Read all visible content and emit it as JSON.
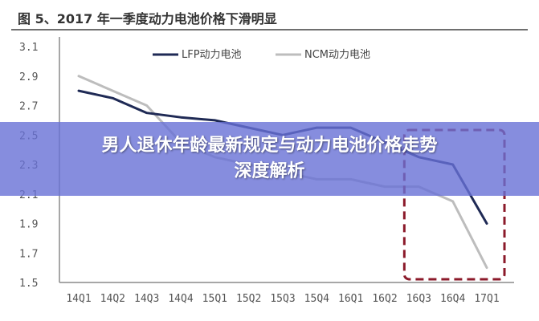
{
  "figure_title": "图 5、2017 年一季度动力电池价格下滑明显",
  "banner": {
    "line1": "男人退休年龄最新规定与动力电池价格走势",
    "line2": "深度解析"
  },
  "colors": {
    "lfp": "#1f2a55",
    "ncm": "#bdbdbd",
    "highlight_box": "#8b1a2a",
    "banner": "#6870d6"
  },
  "chart_data": {
    "type": "line",
    "title": "图 5、2017 年一季度动力电池价格下滑明显",
    "xlabel": "",
    "ylabel": "",
    "x": [
      "14Q1",
      "14Q2",
      "14Q3",
      "14Q4",
      "15Q1",
      "15Q2",
      "15Q3",
      "15Q4",
      "16Q1",
      "16Q2",
      "16Q3",
      "16Q4",
      "17Q1"
    ],
    "x_tick_labels": [
      "14Q1",
      "14Q2",
      "14Q3",
      "14Q4",
      "15Q1",
      "15Q2",
      "15Q3",
      "15Q4",
      "16Q1",
      "16Q2",
      "16Q3",
      "16Q4",
      "17Q1"
    ],
    "ylim": [
      1.5,
      3.1
    ],
    "y_ticks": [
      1.5,
      1.7,
      1.9,
      2.1,
      2.3,
      2.5,
      2.7,
      2.9,
      3.1
    ],
    "y_tick_labels": [
      "1.5",
      "1.7",
      "1.9",
      "2.1",
      "2.3",
      "2.5",
      "2.7",
      "2.9",
      "3.1"
    ],
    "grid": false,
    "legend_position": "top",
    "series": [
      {
        "name": "LFP动力电池",
        "values": [
          2.8,
          2.75,
          2.65,
          2.62,
          2.6,
          2.55,
          2.5,
          2.55,
          2.55,
          2.45,
          2.35,
          2.3,
          1.9
        ]
      },
      {
        "name": "NCM动力电池",
        "values": [
          2.9,
          2.8,
          2.7,
          2.45,
          2.35,
          2.3,
          2.25,
          2.2,
          2.2,
          2.15,
          2.15,
          2.05,
          1.6
        ]
      }
    ],
    "highlight_range": [
      "16Q3",
      "17Q1"
    ]
  }
}
